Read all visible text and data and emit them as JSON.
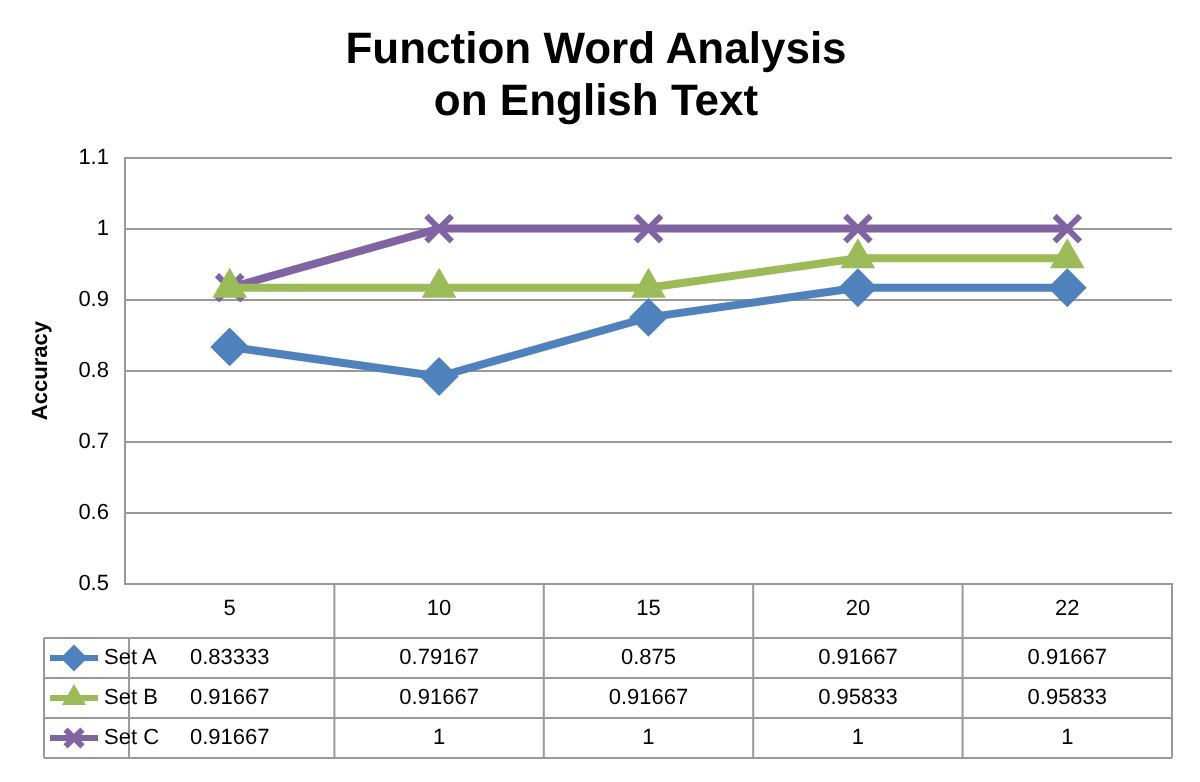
{
  "chart_data": {
    "type": "line",
    "title": "Function Word Analysis on English Text",
    "ylabel": "Accuracy",
    "categories": [
      "5",
      "10",
      "15",
      "20",
      "22"
    ],
    "series": [
      {
        "name": "Set A",
        "color": "#4f81bd",
        "marker": "diamond",
        "values": [
          0.83333,
          0.79167,
          0.875,
          0.91667,
          0.91667
        ]
      },
      {
        "name": "Set B",
        "color": "#9bbb59",
        "marker": "triangle",
        "values": [
          0.91667,
          0.91667,
          0.91667,
          0.95833,
          0.95833
        ]
      },
      {
        "name": "Set C",
        "color": "#8064a2",
        "marker": "cross",
        "values": [
          0.91667,
          1,
          1,
          1,
          1
        ]
      }
    ],
    "ylim": [
      0.5,
      1.1
    ],
    "yticks": [
      0.5,
      0.6,
      0.7,
      0.8,
      0.9,
      1,
      1.1
    ],
    "grid": "y",
    "legend": "bottom",
    "data_labels": true,
    "line_style": "solid"
  }
}
